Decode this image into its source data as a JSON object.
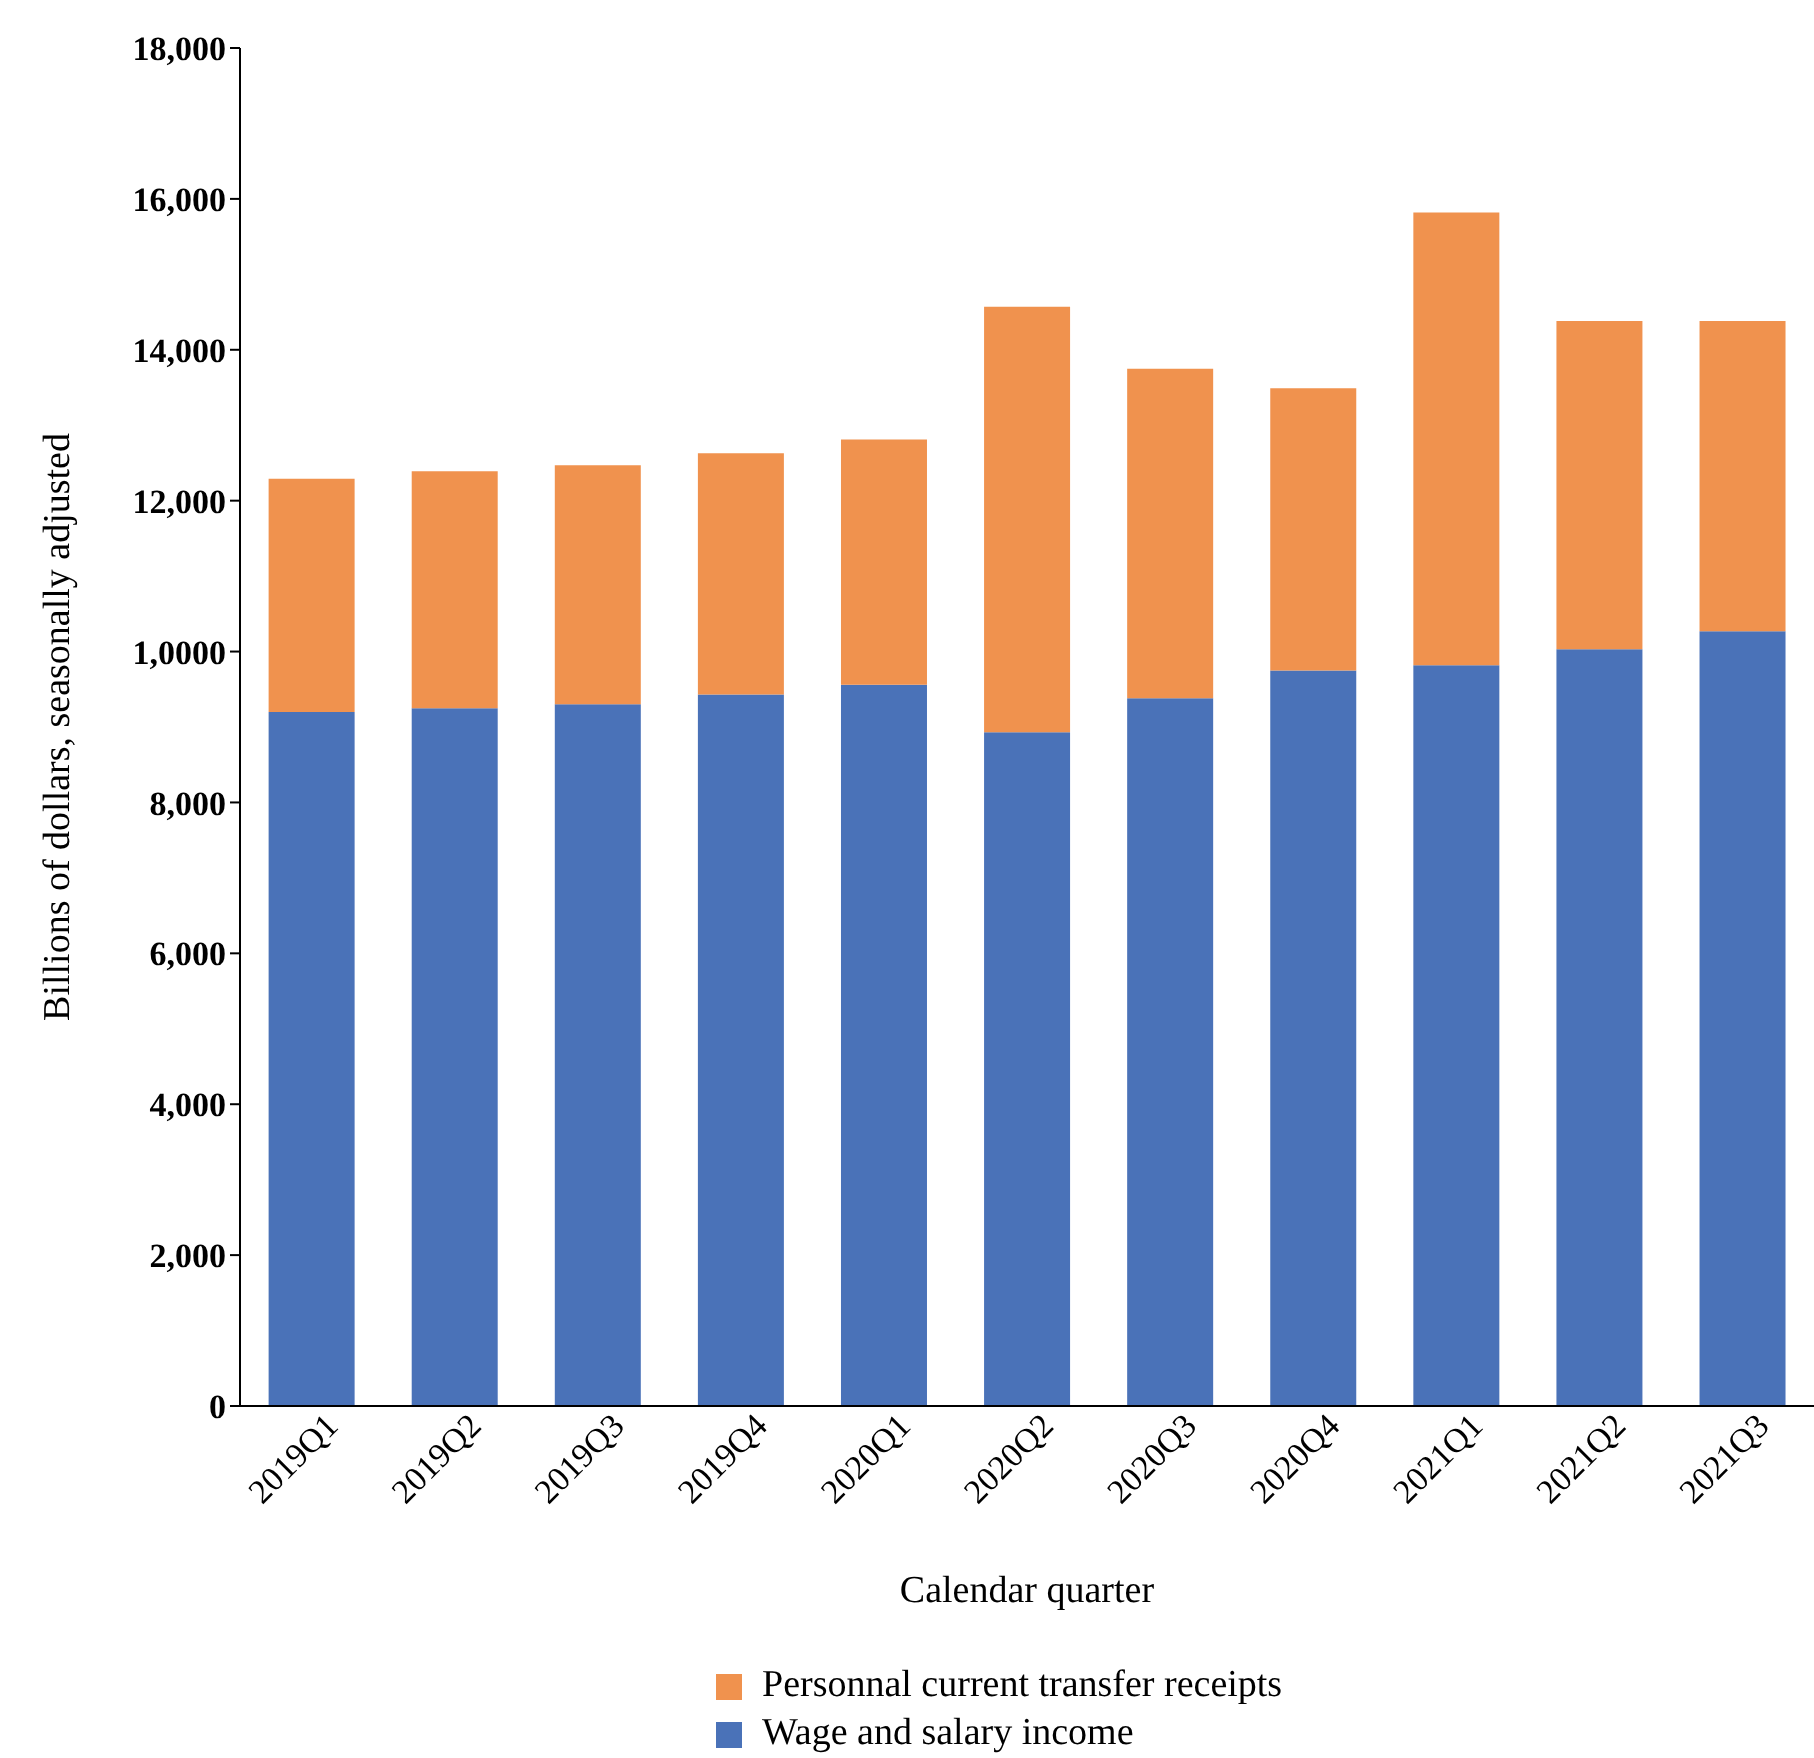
{
  "chart_data": {
    "type": "bar",
    "stacked": true,
    "xlabel": "Calendar quarter",
    "ylabel": "Billions of dollars, seasonally adjusted",
    "categories": [
      "2019Q1",
      "2019Q2",
      "2019Q3",
      "2019Q4",
      "2020Q1",
      "2020Q2",
      "2020Q3",
      "2020Q4",
      "2021Q1",
      "2021Q2",
      "2021Q3"
    ],
    "series": [
      {
        "name": "Wage and salary income",
        "color": "#4a72b8",
        "values": [
          9200,
          9250,
          9300,
          9430,
          9560,
          8930,
          9380,
          9750,
          9820,
          10030,
          10270
        ]
      },
      {
        "name": "Personnal current transfer receipts",
        "color": "#f0924e",
        "values": [
          3090,
          3140,
          3170,
          3200,
          3250,
          5640,
          4370,
          3740,
          6000,
          4350,
          4110
        ]
      }
    ],
    "ylim": [
      0,
      18000
    ],
    "yticks": [
      {
        "value": 0,
        "label": "0"
      },
      {
        "value": 2000,
        "label": "2,000"
      },
      {
        "value": 4000,
        "label": "4,000"
      },
      {
        "value": 6000,
        "label": "6,000"
      },
      {
        "value": 8000,
        "label": "8,000"
      },
      {
        "value": 10000,
        "label": "1,0000"
      },
      {
        "value": 12000,
        "label": "12,000"
      },
      {
        "value": 14000,
        "label": "14,000"
      },
      {
        "value": 16000,
        "label": "16,000"
      },
      {
        "value": 18000,
        "label": "18,000"
      }
    ],
    "grid": false,
    "legend": "bottom"
  }
}
